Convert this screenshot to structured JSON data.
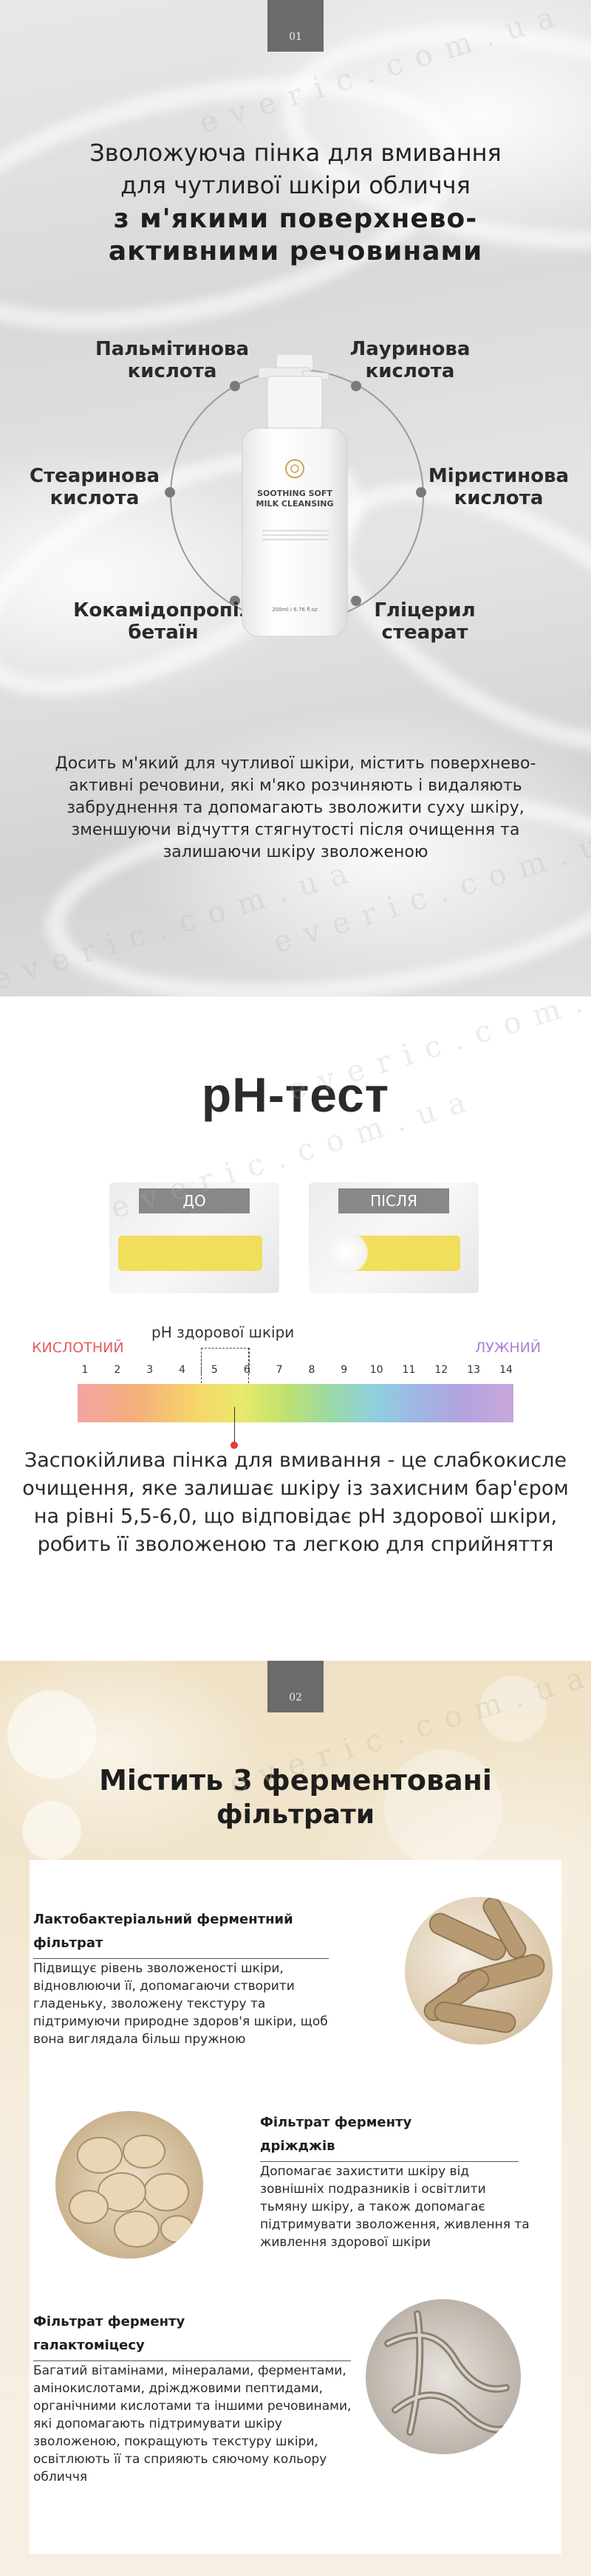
{
  "watermark": "everic.com.ua",
  "section1": {
    "number": "01",
    "title_line1": "Зволожуюча пінка для вмивання",
    "title_line2": "для чутливої шкіри обличчя",
    "title_bold1": "з м'якими поверхнево-",
    "title_bold2": "активними речовинами",
    "ingredients": [
      {
        "line1": "Пальмітинова",
        "line2": "кислота"
      },
      {
        "line1": "Лауринова",
        "line2": "кислота"
      },
      {
        "line1": "Стеаринова",
        "line2": "кислота"
      },
      {
        "line1": "Міристинова",
        "line2": "кислота"
      },
      {
        "line1": "Кокамідопропіл",
        "line2": "бетаїн"
      },
      {
        "line1": "Гліцерил",
        "line2": "стеарат"
      }
    ],
    "bottle": {
      "name_line1": "SOOTHING SOFT",
      "name_line2": "MILK CLEANSING",
      "volume": "200ml / 6.76 fl.oz"
    },
    "description": "Досить м'який для чутливої шкіри, містить поверхнево-активні речовини, які м'яко розчиняють і видаляють забруднення та допомагають зволожити суху шкіру, зменшуючи відчуття стягнутості після очищення та залишаючи шкіру зволоженою"
  },
  "section2": {
    "title": "pH-тест",
    "before_label": "ДО",
    "after_label": "ПІСЛЯ",
    "healthy_label": "pH здорової шкіри",
    "acid_label": "КИСЛОТНИЙ",
    "alkaline_label": "ЛУЖНИЙ",
    "acid_color": "#e15d5d",
    "alkaline_color": "#b07fd1",
    "scale_numbers": [
      "1",
      "2",
      "3",
      "4",
      "5",
      "6",
      "7",
      "8",
      "9",
      "10",
      "11",
      "12",
      "13",
      "14"
    ],
    "description": "Заспокійлива пінка для вмивання  - це слабкокисле очищення, яке залишає шкіру із захисним бар'єром на рівні 5,5-6,0, що відповідає pH здорової шкіри, робить її зволоженою та легкою для сприйняття"
  },
  "section3": {
    "number": "02",
    "title_line1": "Містить 3 ферментовані",
    "title_line2": "фільтрати",
    "items": [
      {
        "title_line1": "Лактобактеріальний ферментний",
        "title_line2": "фільтрат",
        "text": "Підвищує рівень зволоженості шкіри, відновлюючи її, допомагаючи створити гладеньку, зволожену текстуру та підтримуючи природне здоров'я шкіри, щоб вона виглядала більш пружною"
      },
      {
        "title_line1": "Фільтрат ферменту",
        "title_line2": "дріжджів",
        "text": "Допомагає захистити шкіру від зовнішніх подразників і освітлити тьмяну шкіру, а також допомагає підтримувати зволоження, живлення та живлення здорової шкіри"
      },
      {
        "title_line1": "Фільтрат ферменту",
        "title_line2": "галактоміцесу",
        "text": "Багатий вітамінами, мінералами, ферментами, амінокислотами, дріжджовими пептидами, органічними кислотами та іншими речовинами, які допомагають підтримувати шкіру зволоженою, покращують текстуру шкіри, освітлюють її та сприяють сяючому кольору обличчя"
      }
    ]
  }
}
